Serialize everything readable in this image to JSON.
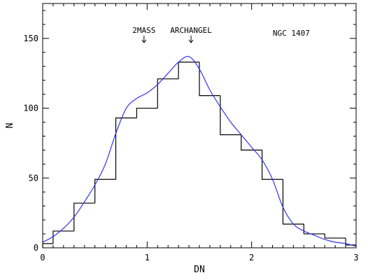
{
  "chart_data": {
    "type": "line",
    "title": "",
    "xlabel": "DN",
    "ylabel": "N",
    "xlim": [
      0,
      3
    ],
    "ylim": [
      0,
      175
    ],
    "x_ticks": [
      0,
      1,
      2,
      3
    ],
    "x_tick_labels": [
      "0",
      "1",
      "2",
      "3"
    ],
    "y_ticks": [
      0,
      50,
      100,
      150
    ],
    "y_tick_labels": [
      "0",
      "50",
      "100",
      "150"
    ],
    "grid": false,
    "annotations": [
      {
        "text": "NGC 1407",
        "x": 2.38,
        "y": 152
      },
      {
        "text": "2MASS",
        "x": 0.97,
        "y": 154,
        "arrow": true
      },
      {
        "text": "ARCHANGEL",
        "x": 1.42,
        "y": 154,
        "arrow": true
      }
    ],
    "series": [
      {
        "style": "histogram",
        "color": "#000000",
        "bin_edges": [
          0.0,
          0.1,
          0.3,
          0.5,
          0.7,
          0.9,
          1.1,
          1.3,
          1.5,
          1.7,
          1.9,
          2.1,
          2.3,
          2.5,
          2.7,
          2.9,
          3.0
        ],
        "values": [
          3,
          12,
          32,
          49,
          93,
          100,
          121,
          133,
          109,
          81,
          70,
          49,
          17,
          10,
          7,
          2
        ]
      },
      {
        "style": "smooth",
        "color": "#3333ee",
        "x": [
          0.0,
          0.1,
          0.2,
          0.3,
          0.4,
          0.5,
          0.6,
          0.7,
          0.8,
          0.9,
          1.0,
          1.1,
          1.2,
          1.3,
          1.4,
          1.5,
          1.6,
          1.7,
          1.8,
          1.9,
          2.0,
          2.1,
          2.2,
          2.3,
          2.4,
          2.5,
          2.6,
          2.7,
          2.8,
          2.9,
          3.0
        ],
        "y": [
          4,
          8,
          14,
          22,
          33,
          45,
          60,
          82,
          100,
          107,
          111,
          117,
          125,
          133,
          137,
          128,
          113,
          101,
          90,
          81,
          72,
          63,
          49,
          29,
          17,
          12,
          9,
          6,
          4,
          3,
          1
        ]
      }
    ]
  }
}
